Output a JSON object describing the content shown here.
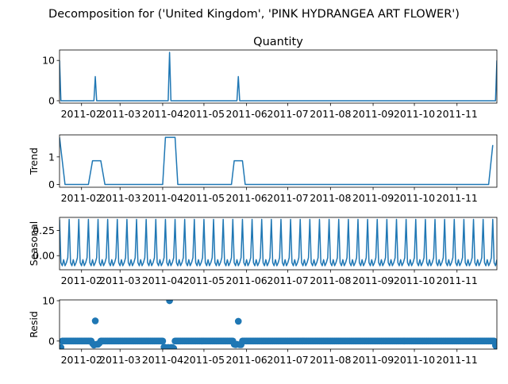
{
  "chart_data": {
    "title": "Decomposition for ('United Kingdom', 'PINK HYDRANGEA ART FLOWER')",
    "type": "line",
    "x_tick_labels": [
      "2011-02",
      "2011-03",
      "2011-04",
      "2011-05",
      "2011-06",
      "2011-07",
      "2011-08",
      "2011-09",
      "2011-10",
      "2011-11"
    ],
    "x_range": [
      "2011-01-16",
      "2011-11-30"
    ],
    "line_color": "#1f77b4",
    "panels": [
      {
        "name": "quantity",
        "subtitle": "Quantity",
        "ylabel": "",
        "type": "line",
        "ylim": [
          -0.6,
          12.6
        ],
        "yticks": [
          0,
          10
        ],
        "points": [
          [
            "2011-01-16",
            10
          ],
          [
            "2011-01-17",
            0
          ],
          [
            "2011-02-10",
            0
          ],
          [
            "2011-02-11",
            6
          ],
          [
            "2011-02-12",
            0
          ],
          [
            "2011-04-05",
            0
          ],
          [
            "2011-04-06",
            12
          ],
          [
            "2011-04-07",
            0
          ],
          [
            "2011-05-25",
            0
          ],
          [
            "2011-05-26",
            6
          ],
          [
            "2011-05-27",
            0
          ],
          [
            "2011-11-29",
            0
          ],
          [
            "2011-11-30",
            10
          ]
        ]
      },
      {
        "name": "trend",
        "subtitle": "",
        "ylabel": "Trend",
        "type": "line",
        "ylim": [
          -0.1,
          1.8
        ],
        "yticks": [
          0,
          1
        ],
        "points": [
          [
            "2011-01-16",
            1.71
          ],
          [
            "2011-01-20",
            0
          ],
          [
            "2011-02-06",
            0
          ],
          [
            "2011-02-09",
            0.86
          ],
          [
            "2011-02-15",
            0.86
          ],
          [
            "2011-02-18",
            0
          ],
          [
            "2011-04-01",
            0
          ],
          [
            "2011-04-03",
            1.71
          ],
          [
            "2011-04-10",
            1.71
          ],
          [
            "2011-04-12",
            0
          ],
          [
            "2011-05-21",
            0
          ],
          [
            "2011-05-23",
            0.86
          ],
          [
            "2011-05-29",
            0.86
          ],
          [
            "2011-05-31",
            0
          ],
          [
            "2011-11-24",
            0
          ],
          [
            "2011-11-27",
            1.43
          ]
        ]
      },
      {
        "name": "seasonal",
        "subtitle": "",
        "ylabel": "Seasonal",
        "type": "line",
        "ylim": [
          -0.14,
          0.38
        ],
        "yticks": [
          -0.0,
          0.25
        ],
        "ytick_labels": [
          "0.00",
          "0.25"
        ],
        "period_days": 7,
        "first_peak": "2011-01-23",
        "weekly_pattern": [
          -0.07,
          -0.1,
          -0.04,
          -0.1,
          -0.07,
          -0.02,
          0.36
        ]
      },
      {
        "name": "resid",
        "subtitle": "",
        "ylabel": "Resid",
        "type": "scatter",
        "ylim": [
          -2.0,
          10.2
        ],
        "yticks": [
          0,
          10
        ],
        "baseline": 0,
        "outliers": [
          [
            "2011-01-16",
            -1.7
          ],
          [
            "2011-01-17",
            -1.6
          ],
          [
            "2011-02-09",
            -0.6
          ],
          [
            "2011-02-10",
            -1.0
          ],
          [
            "2011-02-11",
            5.0
          ],
          [
            "2011-02-12",
            -0.8
          ],
          [
            "2011-02-13",
            -0.8
          ],
          [
            "2011-02-14",
            -0.5
          ],
          [
            "2011-04-02",
            -1.5
          ],
          [
            "2011-04-03",
            -1.6
          ],
          [
            "2011-04-04",
            -1.7
          ],
          [
            "2011-04-05",
            -1.6
          ],
          [
            "2011-04-06",
            10.0
          ],
          [
            "2011-04-07",
            -1.6
          ],
          [
            "2011-04-08",
            -1.6
          ],
          [
            "2011-04-09",
            -1.8
          ],
          [
            "2011-05-23",
            -0.8
          ],
          [
            "2011-05-24",
            -0.9
          ],
          [
            "2011-05-25",
            -0.8
          ],
          [
            "2011-05-26",
            4.9
          ],
          [
            "2011-05-27",
            -0.9
          ],
          [
            "2011-05-28",
            -0.9
          ],
          [
            "2011-11-29",
            -1.1
          ],
          [
            "2011-11-30",
            -1.6
          ]
        ]
      }
    ]
  }
}
